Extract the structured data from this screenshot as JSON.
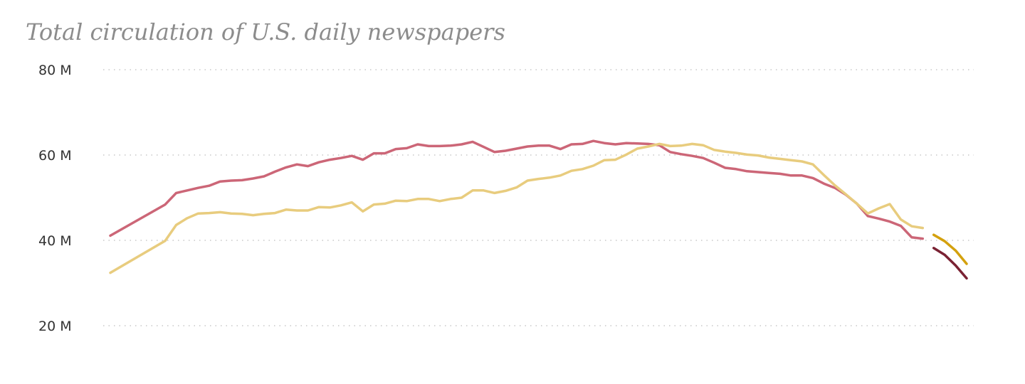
{
  "chart_data": {
    "type": "line",
    "title": "Total circulation of U.S. daily newspapers",
    "xlabel": "",
    "ylabel": "",
    "xlim": [
      1940,
      2015
    ],
    "ylim": [
      20,
      80
    ],
    "yticks": [
      {
        "value": 20,
        "label": "20 M"
      },
      {
        "value": 40,
        "label": "40 M"
      },
      {
        "value": 60,
        "label": "60 M"
      },
      {
        "value": 80,
        "label": "80 M"
      }
    ],
    "grid": true,
    "series": [
      {
        "color": "#cc6677",
        "points": [
          [
            1940,
            41.1
          ],
          [
            1945,
            48.4
          ],
          [
            1946,
            51.1
          ],
          [
            1947,
            51.7
          ],
          [
            1948,
            52.3
          ],
          [
            1949,
            52.8
          ],
          [
            1950,
            53.8
          ],
          [
            1951,
            54.0
          ],
          [
            1952,
            54.1
          ],
          [
            1953,
            54.5
          ],
          [
            1954,
            55.0
          ],
          [
            1955,
            56.1
          ],
          [
            1956,
            57.1
          ],
          [
            1957,
            57.8
          ],
          [
            1958,
            57.4
          ],
          [
            1959,
            58.3
          ],
          [
            1960,
            58.9
          ],
          [
            1961,
            59.3
          ],
          [
            1962,
            59.8
          ],
          [
            1963,
            58.9
          ],
          [
            1964,
            60.4
          ],
          [
            1965,
            60.4
          ],
          [
            1966,
            61.4
          ],
          [
            1967,
            61.6
          ],
          [
            1968,
            62.5
          ],
          [
            1969,
            62.1
          ],
          [
            1970,
            62.1
          ],
          [
            1971,
            62.2
          ],
          [
            1972,
            62.5
          ],
          [
            1973,
            63.1
          ],
          [
            1974,
            61.9
          ],
          [
            1975,
            60.7
          ],
          [
            1976,
            61.0
          ],
          [
            1977,
            61.5
          ],
          [
            1978,
            62.0
          ],
          [
            1979,
            62.2
          ],
          [
            1980,
            62.2
          ],
          [
            1981,
            61.4
          ],
          [
            1982,
            62.5
          ],
          [
            1983,
            62.6
          ],
          [
            1984,
            63.3
          ],
          [
            1985,
            62.8
          ],
          [
            1986,
            62.5
          ],
          [
            1987,
            62.8
          ],
          [
            1988,
            62.7
          ],
          [
            1989,
            62.6
          ],
          [
            1990,
            62.3
          ],
          [
            1991,
            60.7
          ],
          [
            1992,
            60.2
          ],
          [
            1993,
            59.8
          ],
          [
            1994,
            59.3
          ],
          [
            1995,
            58.2
          ],
          [
            1996,
            57.0
          ],
          [
            1997,
            56.7
          ],
          [
            1998,
            56.2
          ],
          [
            1999,
            56.0
          ],
          [
            2000,
            55.8
          ],
          [
            2001,
            55.6
          ],
          [
            2002,
            55.2
          ],
          [
            2003,
            55.2
          ],
          [
            2004,
            54.6
          ],
          [
            2005,
            53.3
          ],
          [
            2006,
            52.3
          ],
          [
            2007,
            50.7
          ],
          [
            2008,
            48.6
          ],
          [
            2009,
            45.7
          ],
          [
            2010,
            45.1
          ],
          [
            2011,
            44.4
          ],
          [
            2012,
            43.4
          ],
          [
            2013,
            40.7
          ],
          [
            2014,
            40.4
          ]
        ]
      },
      {
        "color": "#e8cc7e",
        "points": [
          [
            1940,
            32.4
          ],
          [
            1945,
            39.9
          ],
          [
            1946,
            43.6
          ],
          [
            1947,
            45.2
          ],
          [
            1948,
            46.3
          ],
          [
            1949,
            46.4
          ],
          [
            1950,
            46.6
          ],
          [
            1951,
            46.3
          ],
          [
            1952,
            46.2
          ],
          [
            1953,
            45.9
          ],
          [
            1954,
            46.2
          ],
          [
            1955,
            46.4
          ],
          [
            1956,
            47.2
          ],
          [
            1957,
            47.0
          ],
          [
            1958,
            47.0
          ],
          [
            1959,
            47.8
          ],
          [
            1960,
            47.7
          ],
          [
            1961,
            48.2
          ],
          [
            1962,
            48.9
          ],
          [
            1963,
            46.8
          ],
          [
            1964,
            48.4
          ],
          [
            1965,
            48.6
          ],
          [
            1966,
            49.3
          ],
          [
            1967,
            49.2
          ],
          [
            1968,
            49.7
          ],
          [
            1969,
            49.7
          ],
          [
            1970,
            49.2
          ],
          [
            1971,
            49.7
          ],
          [
            1972,
            50.0
          ],
          [
            1973,
            51.7
          ],
          [
            1974,
            51.7
          ],
          [
            1975,
            51.1
          ],
          [
            1976,
            51.6
          ],
          [
            1977,
            52.4
          ],
          [
            1978,
            54.0
          ],
          [
            1979,
            54.4
          ],
          [
            1980,
            54.7
          ],
          [
            1981,
            55.2
          ],
          [
            1982,
            56.3
          ],
          [
            1983,
            56.7
          ],
          [
            1984,
            57.5
          ],
          [
            1985,
            58.8
          ],
          [
            1986,
            58.9
          ],
          [
            1987,
            60.1
          ],
          [
            1988,
            61.5
          ],
          [
            1989,
            62.0
          ],
          [
            1990,
            62.6
          ],
          [
            1991,
            62.1
          ],
          [
            1992,
            62.2
          ],
          [
            1993,
            62.6
          ],
          [
            1994,
            62.3
          ],
          [
            1995,
            61.2
          ],
          [
            1996,
            60.8
          ],
          [
            1997,
            60.5
          ],
          [
            1998,
            60.1
          ],
          [
            1999,
            59.9
          ],
          [
            2000,
            59.4
          ],
          [
            2001,
            59.1
          ],
          [
            2002,
            58.8
          ],
          [
            2003,
            58.5
          ],
          [
            2004,
            57.8
          ],
          [
            2005,
            55.3
          ],
          [
            2006,
            52.9
          ],
          [
            2007,
            50.8
          ],
          [
            2008,
            48.6
          ],
          [
            2009,
            46.3
          ],
          [
            2010,
            47.5
          ],
          [
            2011,
            48.5
          ],
          [
            2012,
            44.9
          ],
          [
            2013,
            43.3
          ],
          [
            2014,
            42.9
          ]
        ]
      },
      {
        "color": "#d4a10e",
        "points": [
          [
            2015,
            41.3
          ],
          [
            2016,
            39.8
          ],
          [
            2017,
            37.6
          ],
          [
            2018,
            34.5
          ]
        ]
      },
      {
        "color": "#7a2233",
        "points": [
          [
            2015,
            38.2
          ],
          [
            2016,
            36.6
          ],
          [
            2017,
            34.1
          ],
          [
            2018,
            31.1
          ]
        ]
      }
    ]
  }
}
